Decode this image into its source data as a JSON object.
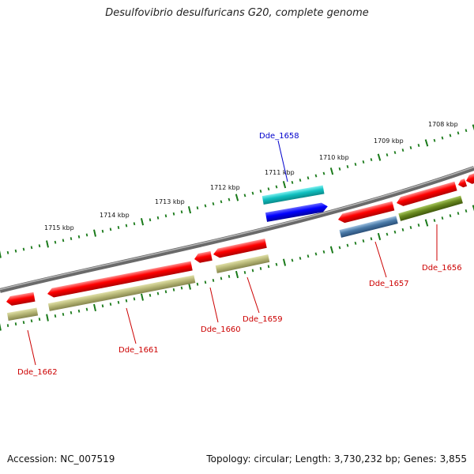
{
  "title": "Desulfovibrio desulfuricans G20, complete genome",
  "footer": {
    "accession": "Accession: NC_007519",
    "summary": "Topology: circular; Length: 3,730,232 bp; Genes: 3,855"
  },
  "colors": {
    "backbone": "#808080",
    "tick": "#1a7a1a",
    "gene_label": "#cc0000",
    "highlight_label": "#0000cc",
    "red_gene": "#ff0000",
    "khaki_gene": "#b8b878",
    "cyan_gene": "#10c0c0",
    "blue_gene": "#0000ff",
    "steelblue_gene": "#4a7aa8",
    "olive_gene": "#6a8a20"
  },
  "scale_labels": [
    "1708 kbp",
    "1709 kbp",
    "1710 kbp",
    "1711 kbp",
    "1712 kbp",
    "1713 kbp",
    "1714 kbp",
    "1715 kbp"
  ],
  "gene_labels": {
    "dde_1658": "Dde_1658",
    "dde_1656": "Dde_1656",
    "dde_1657": "Dde_1657",
    "dde_1659": "Dde_1659",
    "dde_1660": "Dde_1660",
    "dde_1661": "Dde_1661",
    "dde_1662": "Dde_1662"
  }
}
